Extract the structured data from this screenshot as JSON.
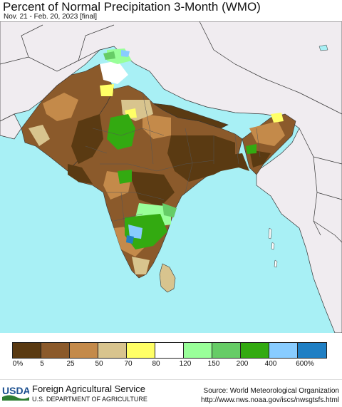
{
  "header": {
    "title": "Percent of Normal Precipitation 3-Month (WMO)",
    "subtitle": "Nov. 21 - Feb. 20, 2023 [final]"
  },
  "legend": {
    "colors": [
      "#5a3a12",
      "#8b5a2b",
      "#c48a4a",
      "#d8c48e",
      "#ffff66",
      "#ffffff",
      "#99ff99",
      "#66cc66",
      "#33aa11",
      "#88ccff",
      "#1f7fc4"
    ],
    "labels": [
      "0%",
      "5",
      "25",
      "50",
      "70",
      "80",
      "120",
      "150",
      "200",
      "400",
      "600%"
    ]
  },
  "footer": {
    "logo_text": "USDA",
    "agency": "Foreign Agricultural Service",
    "department": "U.S. DEPARTMENT OF AGRICULTURE",
    "source": "Source: World Meteorological Organization",
    "url": "http://www.nws.noaa.gov/iscs/nwsgtsfs.html"
  },
  "map_colors": {
    "ocean": "#a8f0f5",
    "outside_land": "#f0ecf0",
    "border": "#333333"
  }
}
